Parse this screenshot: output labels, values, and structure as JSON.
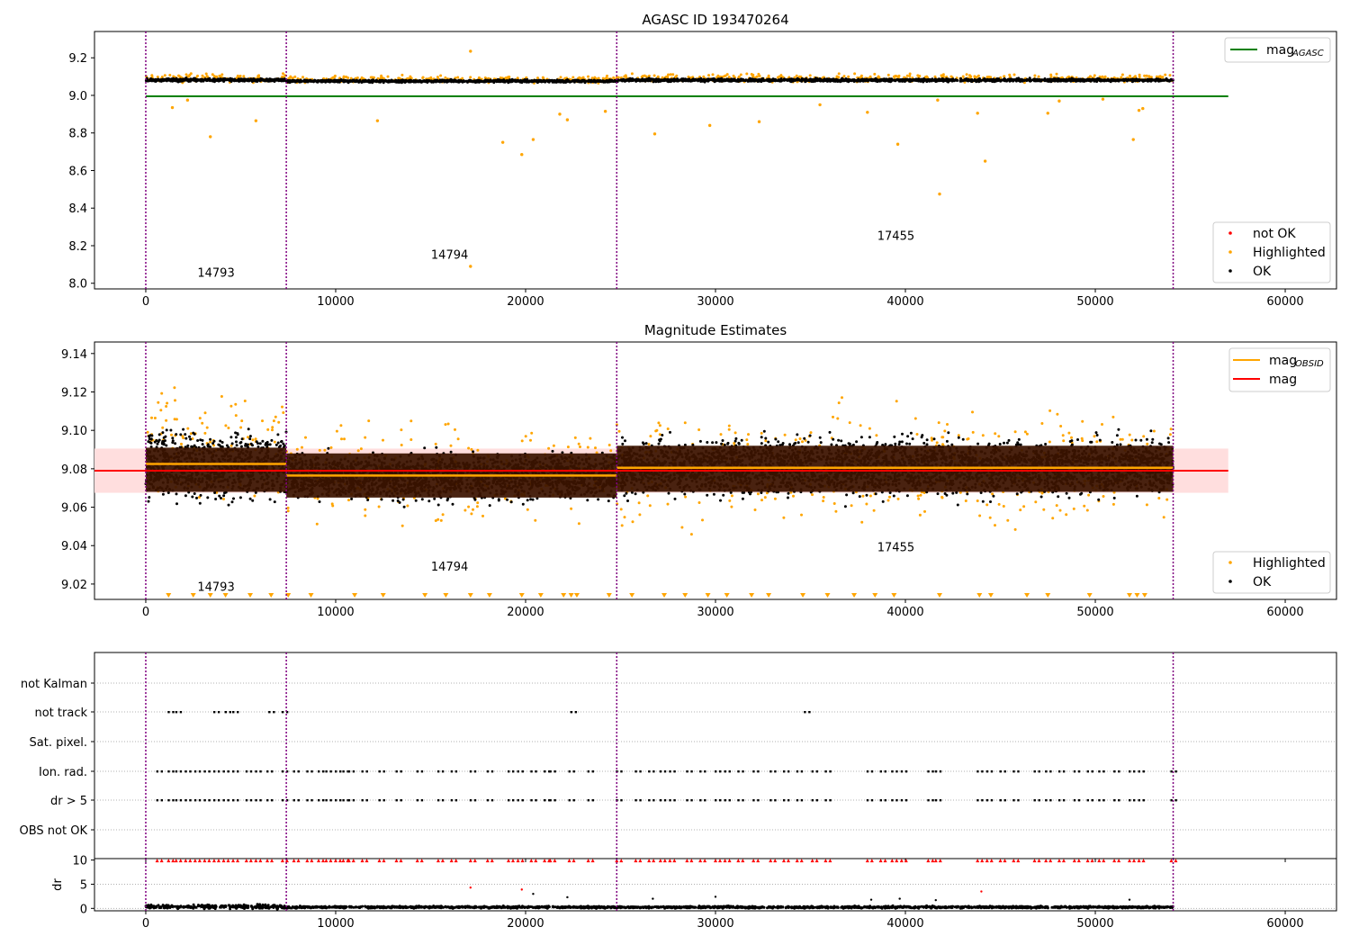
{
  "chart_data": [
    {
      "type": "scatter",
      "title": "AGASC ID 193470264",
      "xlim": [
        -2700,
        62700
      ],
      "ylim": [
        7.97,
        9.34
      ],
      "xticks": [
        0,
        10000,
        20000,
        30000,
        40000,
        50000,
        60000
      ],
      "yticks": [
        8.0,
        8.2,
        8.4,
        8.6,
        8.8,
        9.0,
        9.2
      ],
      "ytick_labels": [
        "8.0",
        "8.2",
        "8.4",
        "8.6",
        "8.8",
        "9.0",
        "9.2"
      ],
      "grid": false,
      "vlines": [
        0,
        7400,
        24800,
        54100
      ],
      "obsid_labels": [
        {
          "text": "14793",
          "x": 3700,
          "y": 8.035
        },
        {
          "text": "14794",
          "x": 16000,
          "y": 8.13
        },
        {
          "text": "17455",
          "x": 39500,
          "y": 8.23
        }
      ],
      "hline": {
        "name": "mag_AGASC",
        "y": 8.995,
        "xrange": [
          0,
          57000
        ],
        "color": "#008000"
      },
      "legend_top": {
        "position": "top-right",
        "entries": [
          {
            "label": "mag",
            "sub": "AGASC",
            "color": "#008000"
          }
        ]
      },
      "legend_bottom": {
        "position": "bottom-right",
        "entries": [
          {
            "label": "not OK",
            "color": "#ff0000"
          },
          {
            "label": "Highlighted",
            "color": "#ffa500"
          },
          {
            "label": "OK",
            "color": "#000000"
          }
        ]
      },
      "segments": [
        {
          "x0": 0,
          "x1": 7400,
          "center": 9.082,
          "spread": 0.014
        },
        {
          "x0": 7400,
          "x1": 24800,
          "center": 9.076,
          "spread": 0.011
        },
        {
          "x0": 24800,
          "x1": 54100,
          "center": 9.081,
          "spread": 0.013
        }
      ],
      "outliers": [
        {
          "x": 17100,
          "y": 9.235
        },
        {
          "x": 17100,
          "y": 8.09
        },
        {
          "x": 3400,
          "y": 8.78
        },
        {
          "x": 5800,
          "y": 8.865
        },
        {
          "x": 1400,
          "y": 8.935
        },
        {
          "x": 2200,
          "y": 8.975
        },
        {
          "x": 12200,
          "y": 8.865
        },
        {
          "x": 18800,
          "y": 8.75
        },
        {
          "x": 19800,
          "y": 8.685
        },
        {
          "x": 20400,
          "y": 8.765
        },
        {
          "x": 21800,
          "y": 8.9
        },
        {
          "x": 22200,
          "y": 8.87
        },
        {
          "x": 24200,
          "y": 8.915
        },
        {
          "x": 26800,
          "y": 8.795
        },
        {
          "x": 29700,
          "y": 8.84
        },
        {
          "x": 32300,
          "y": 8.86
        },
        {
          "x": 35500,
          "y": 8.95
        },
        {
          "x": 38000,
          "y": 8.91
        },
        {
          "x": 39600,
          "y": 8.74
        },
        {
          "x": 41800,
          "y": 8.475
        },
        {
          "x": 41700,
          "y": 8.975
        },
        {
          "x": 43800,
          "y": 8.905
        },
        {
          "x": 44200,
          "y": 8.65
        },
        {
          "x": 47500,
          "y": 8.905
        },
        {
          "x": 48100,
          "y": 8.97
        },
        {
          "x": 52000,
          "y": 8.765
        },
        {
          "x": 52300,
          "y": 8.92
        },
        {
          "x": 52500,
          "y": 8.93
        },
        {
          "x": 50400,
          "y": 8.98
        }
      ]
    },
    {
      "type": "scatter",
      "title": "Magnitude Estimates",
      "xlim": [
        -2700,
        62700
      ],
      "ylim": [
        9.012,
        9.146
      ],
      "xticks": [
        0,
        10000,
        20000,
        30000,
        40000,
        50000,
        60000
      ],
      "yticks": [
        9.02,
        9.04,
        9.06,
        9.08,
        9.1,
        9.12,
        9.14
      ],
      "ytick_labels": [
        "9.02",
        "9.04",
        "9.06",
        "9.08",
        "9.10",
        "9.12",
        "9.14"
      ],
      "grid": false,
      "vlines": [
        0,
        7400,
        24800,
        54100
      ],
      "obsid_labels": [
        {
          "text": "14793",
          "x": 3700,
          "y": 9.0165
        },
        {
          "text": "14794",
          "x": 16000,
          "y": 9.027
        },
        {
          "text": "17455",
          "x": 39500,
          "y": 9.037
        }
      ],
      "mag": {
        "name": "mag",
        "y": 9.079,
        "band": [
          9.0675,
          9.0905
        ],
        "xrange": [
          -2700,
          57000
        ],
        "color": "#ff0000"
      },
      "mag_obsid": [
        {
          "x0": 0,
          "x1": 7400,
          "y": 9.0825
        },
        {
          "x0": 7400,
          "x1": 24800,
          "y": 9.0765
        },
        {
          "x0": 24800,
          "x1": 54100,
          "y": 9.0805
        }
      ],
      "legend_top": {
        "position": "top-right",
        "entries": [
          {
            "label": "mag",
            "sub": "OBSID",
            "color": "#ffa500"
          },
          {
            "label": "mag",
            "sub": "",
            "color": "#ff0000"
          }
        ]
      },
      "legend_bottom": {
        "position": "bottom-right",
        "entries": [
          {
            "label": "Highlighted",
            "color": "#ffa500"
          },
          {
            "label": "OK",
            "color": "#000000"
          }
        ]
      },
      "below_range_markers_x": [
        1200,
        2500,
        3400,
        4200,
        5500,
        6600,
        7500,
        8700,
        11000,
        12500,
        14700,
        15800,
        17100,
        18100,
        19800,
        20800,
        22000,
        22400,
        22700,
        24400,
        25600,
        27300,
        28400,
        29600,
        30600,
        31900,
        32800,
        34600,
        35900,
        37300,
        38400,
        39400,
        41800,
        43900,
        44500,
        46400,
        47500,
        49700,
        51800,
        52200,
        52600
      ],
      "band_color": "#3b1300"
    },
    {
      "type": "scatter",
      "title": "",
      "xlim": [
        -2700,
        62700
      ],
      "xticks": [
        0,
        10000,
        20000,
        30000,
        40000,
        50000,
        60000
      ],
      "vlines": [
        0,
        7400,
        24800,
        54100
      ],
      "flag_rows": [
        "not Kalman",
        "not track",
        "Sat. pixel.",
        "Ion. rad.",
        "dr > 5",
        "OBS not OK"
      ],
      "flags": {
        "not track": [
          1200,
          1600,
          3600,
          4200,
          4600,
          6500,
          7200,
          22400,
          34700
        ],
        "Ion. rad.": [
          600,
          1200,
          1600,
          2100,
          2600,
          3100,
          3600,
          4100,
          4600,
          5300,
          5800,
          6400,
          7200,
          7800,
          8500,
          9100,
          9500,
          10000,
          10400,
          10700,
          11400,
          12300,
          13200,
          14300,
          15400,
          16100,
          17100,
          18000,
          19100,
          19600,
          20300,
          21000,
          21300,
          22300,
          23300,
          24800,
          25800,
          26500,
          27100,
          27600,
          28500,
          29200,
          30000,
          30500,
          31200,
          32000,
          32900,
          33600,
          34300,
          35100,
          35800,
          38000,
          38700,
          39300,
          39800,
          41200,
          41600,
          43800,
          44300,
          45000,
          45700,
          46800,
          47400,
          48100,
          48900,
          49600,
          50200,
          51000,
          51800,
          52300,
          54000
        ],
        "dr > 5": [
          600,
          1200,
          1600,
          2100,
          2600,
          3100,
          3600,
          4100,
          4600,
          5300,
          5800,
          6400,
          7200,
          7800,
          8500,
          9100,
          9500,
          10000,
          10400,
          10700,
          11400,
          12300,
          13200,
          14300,
          15400,
          16100,
          17100,
          18000,
          19100,
          19600,
          20300,
          21000,
          21300,
          22300,
          23300,
          24800,
          25800,
          26500,
          27100,
          27600,
          28500,
          29200,
          30000,
          30500,
          31200,
          32000,
          32900,
          33600,
          34300,
          35100,
          35800,
          38000,
          38700,
          39300,
          39800,
          41200,
          41600,
          43800,
          44300,
          45000,
          45700,
          46800,
          47400,
          48100,
          48900,
          49600,
          50200,
          51000,
          51800,
          52300,
          54000
        ]
      }
    },
    {
      "type": "scatter",
      "title": "",
      "ylabel": "dr",
      "xlim": [
        -2700,
        62700
      ],
      "ylim": [
        -0.5,
        10.3
      ],
      "xticks": [
        0,
        10000,
        20000,
        30000,
        40000,
        50000,
        60000
      ],
      "xtick_labels": [
        "0",
        "10000",
        "20000",
        "30000",
        "40000",
        "50000",
        "60000"
      ],
      "yticks": [
        0,
        5,
        10
      ],
      "ytick_labels": [
        "0",
        "5",
        "10"
      ],
      "vlines": [
        0,
        7400,
        24800,
        54100
      ],
      "clipped_markers_x": [
        600,
        1200,
        1600,
        2100,
        2600,
        3100,
        3600,
        4100,
        4600,
        5300,
        5800,
        6400,
        7200,
        7800,
        8500,
        9100,
        9500,
        10000,
        10400,
        10700,
        11400,
        12300,
        13200,
        14300,
        15400,
        16100,
        17100,
        18000,
        19100,
        19600,
        20300,
        21000,
        21300,
        22300,
        23300,
        24800,
        25800,
        26500,
        27100,
        27600,
        28500,
        29200,
        30000,
        30500,
        31200,
        32000,
        32900,
        33600,
        34300,
        35100,
        35800,
        38000,
        38700,
        39300,
        39800,
        41200,
        41600,
        43800,
        44300,
        45000,
        45700,
        46800,
        47400,
        48100,
        48900,
        49600,
        50200,
        51000,
        51800,
        52300,
        54000
      ],
      "red_points": [
        {
          "x": 17100,
          "y": 4.3
        },
        {
          "x": 19800,
          "y": 3.9
        },
        {
          "x": 44000,
          "y": 3.5
        }
      ],
      "black_points": [
        {
          "x": 20400,
          "y": 3.0
        },
        {
          "x": 22200,
          "y": 2.3
        },
        {
          "x": 26700,
          "y": 2.0
        },
        {
          "x": 30000,
          "y": 2.4
        },
        {
          "x": 38200,
          "y": 1.8
        },
        {
          "x": 39700,
          "y": 2.0
        },
        {
          "x": 41600,
          "y": 1.7
        },
        {
          "x": 51800,
          "y": 1.8
        }
      ]
    }
  ]
}
